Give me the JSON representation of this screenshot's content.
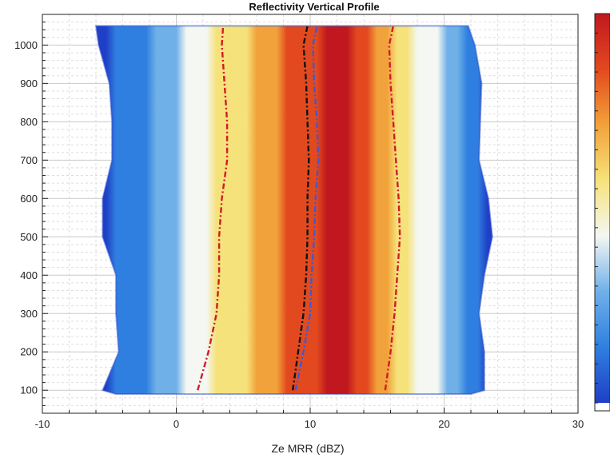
{
  "chart_data": {
    "type": "heatmap",
    "title": "Reflectivity Vertical Profile",
    "xlabel": "Ze MRR (dBZ)",
    "ylabel": "",
    "xlim": [
      -10,
      30
    ],
    "ylim": [
      40,
      1080
    ],
    "x_ticks": [
      -10,
      0,
      10,
      20,
      30
    ],
    "y_ticks": [
      100,
      200,
      300,
      400,
      500,
      600,
      700,
      800,
      900,
      1000
    ],
    "grid": true,
    "colormap": {
      "stops": [
        "#1f3fc6",
        "#2f7fe0",
        "#6fb0e8",
        "#f4f7f2",
        "#f6e27a",
        "#f2a23a",
        "#e2491f",
        "#c0181e"
      ],
      "outside_color": "#ffffff"
    },
    "density_envelope": {
      "height": [
        90,
        100,
        200,
        300,
        400,
        500,
        600,
        700,
        800,
        900,
        1000,
        1050
      ],
      "left": [
        -4.5,
        -5.5,
        -4.3,
        -4.5,
        -4.5,
        -5.5,
        -5.5,
        -4.8,
        -4.8,
        -5.0,
        -5.8,
        -6.0
      ],
      "right": [
        22.0,
        23.0,
        23.0,
        22.6,
        23.0,
        23.6,
        23.3,
        22.6,
        22.7,
        22.8,
        22.3,
        21.8
      ]
    },
    "density_peak": {
      "height": [
        100,
        200,
        300,
        400,
        500,
        600,
        700,
        800,
        900,
        1000,
        1050
      ],
      "x": [
        11.5,
        11.5,
        11.8,
        12.0,
        11.8,
        11.8,
        12.0,
        12.0,
        12.2,
        12.2,
        12.0
      ]
    },
    "series": [
      {
        "color": "#d01a2a",
        "height": [
          100,
          150,
          200,
          300,
          400,
          500,
          600,
          700,
          800,
          900,
          1000,
          1050
        ],
        "x": [
          1.6,
          2.0,
          2.4,
          3.0,
          3.2,
          3.2,
          3.4,
          3.8,
          3.8,
          3.6,
          3.4,
          3.5
        ]
      },
      {
        "color": "#111111",
        "height": [
          100,
          150,
          200,
          300,
          400,
          500,
          600,
          700,
          800,
          900,
          1000,
          1050
        ],
        "x": [
          8.7,
          8.9,
          9.1,
          9.5,
          9.7,
          9.8,
          9.8,
          9.9,
          9.8,
          9.7,
          9.5,
          9.8
        ]
      },
      {
        "color": "#3a5bd6",
        "height": [
          100,
          150,
          200,
          300,
          400,
          500,
          600,
          700,
          800,
          900,
          1000,
          1050
        ],
        "x": [
          8.9,
          9.2,
          9.5,
          10.0,
          10.1,
          10.3,
          10.4,
          10.6,
          10.5,
          10.3,
          10.2,
          10.5
        ]
      },
      {
        "color": "#d01a2a",
        "height": [
          100,
          150,
          200,
          300,
          400,
          500,
          600,
          700,
          800,
          900,
          1000,
          1050
        ],
        "x": [
          15.6,
          15.8,
          16.0,
          16.3,
          16.5,
          16.7,
          16.6,
          16.4,
          16.2,
          16.0,
          15.9,
          16.2
        ]
      }
    ]
  }
}
